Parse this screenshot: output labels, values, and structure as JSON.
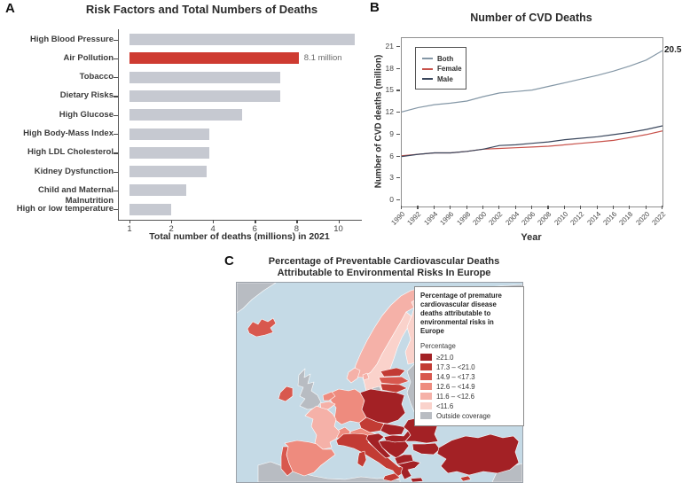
{
  "labels": {
    "a": "A",
    "b": "B",
    "c": "C"
  },
  "chart_data": [
    {
      "panel": "A",
      "type": "bar",
      "orientation": "horizontal",
      "title": "Risk Factors and Total Numbers of Deaths",
      "xlabel": "Total number of deaths (millions) in 2021",
      "categories": [
        "High Blood Pressure",
        "Air Pollution",
        "Tobacco",
        "Dietary Risks",
        "High Glucose",
        "High Body-Mass Index",
        "High LDL Cholesterol",
        "Kidney Dysfunction",
        "Child and Maternal Malnutrition",
        "High or low temperature"
      ],
      "values": [
        10.8,
        8.1,
        7.2,
        7.2,
        5.4,
        3.8,
        3.8,
        3.7,
        2.7,
        2.0
      ],
      "x_ticks": [
        1,
        2,
        4,
        6,
        8,
        10
      ],
      "bar_color": "#C6C9D1",
      "highlight": {
        "category": "Air Pollution",
        "value": 8.1,
        "color": "#CE3B31",
        "annotation": "8.1 million"
      }
    },
    {
      "panel": "B",
      "type": "line",
      "title": "Number of CVD Deaths",
      "xlabel": "Year",
      "ylabel": "Number of CVD deaths (million)",
      "x": [
        1990,
        1992,
        1994,
        1996,
        1998,
        2000,
        2002,
        2004,
        2006,
        2008,
        2010,
        2012,
        2014,
        2016,
        2018,
        2020,
        2022
      ],
      "y_ticks": [
        0,
        3,
        6,
        9,
        12,
        15,
        18,
        21
      ],
      "ylim": [
        0,
        22.5
      ],
      "legend_position": "upper-left",
      "series": [
        {
          "name": "Both",
          "color": "#8497A6",
          "values": [
            12.1,
            12.7,
            13.1,
            13.3,
            13.6,
            14.2,
            14.7,
            14.9,
            15.1,
            15.6,
            16.1,
            16.6,
            17.1,
            17.7,
            18.4,
            19.2,
            20.5
          ]
        },
        {
          "name": "Female",
          "color": "#C8524B",
          "values": [
            6.1,
            6.3,
            6.5,
            6.5,
            6.7,
            7.0,
            7.1,
            7.2,
            7.3,
            7.4,
            7.6,
            7.8,
            8.0,
            8.2,
            8.6,
            9.0,
            9.5
          ]
        },
        {
          "name": "Male",
          "color": "#39465C",
          "values": [
            6.0,
            6.3,
            6.5,
            6.5,
            6.7,
            7.0,
            7.5,
            7.6,
            7.8,
            8.0,
            8.3,
            8.5,
            8.7,
            9.0,
            9.3,
            9.7,
            10.2
          ]
        }
      ],
      "end_annotation": "20.5"
    },
    {
      "panel": "C",
      "type": "choropleth",
      "title_line1": "Percentage of Preventable Cardiovascular Deaths",
      "title_line2": "Attributable to Environmental Risks In Europe",
      "legend_title": "Percentage of premature cardiovascular disease deaths attributable to environmental risks in Europe",
      "legend_subtitle": "Percentage",
      "classes": [
        {
          "label": "≥21.0",
          "color": "#A32125"
        },
        {
          "label": "17.3 – <21.0",
          "color": "#C23B34"
        },
        {
          "label": "14.9 – <17.3",
          "color": "#D8584E"
        },
        {
          "label": "12.6 – <14.9",
          "color": "#EE8B7E"
        },
        {
          "label": "11.6 – <12.6",
          "color": "#F5B1A8"
        },
        {
          "label": "<11.6",
          "color": "#FAD2CB"
        },
        {
          "label": "Outside coverage",
          "color": "#B8BCC2"
        }
      ],
      "sea_color": "#C5DAE6",
      "countries": {
        "iceland": 2,
        "norway": 4,
        "sweden": 5,
        "finland": 5,
        "denmark": 4,
        "denmark-island": 4,
        "ireland": 2,
        "united-kingdom": 6,
        "france": 4,
        "corsica": 4,
        "belgium": 4,
        "netherlands": 3,
        "germany": 3,
        "switzerland": 3,
        "austria": 3,
        "czechia": 1,
        "poland": 0,
        "estonia": 1,
        "latvia": 2,
        "lithuania": 1,
        "kaliningrad": 6,
        "spain": 3,
        "portugal": 2,
        "italy": 1,
        "sicily": 1,
        "sardinia": 1,
        "croatia-slovenia": 0,
        "hungary": 0,
        "slovakia": 0,
        "romania": 0,
        "bulgaria": 0,
        "serbia-bosnia": 0,
        "albania-macedonia": 0,
        "greece": 0,
        "crete": 0,
        "turkey": 0,
        "cyprus": 1,
        "outside-east": 6,
        "outside-greenland": 6,
        "outside-africa": 6,
        "outside-levant": 6
      }
    }
  ]
}
